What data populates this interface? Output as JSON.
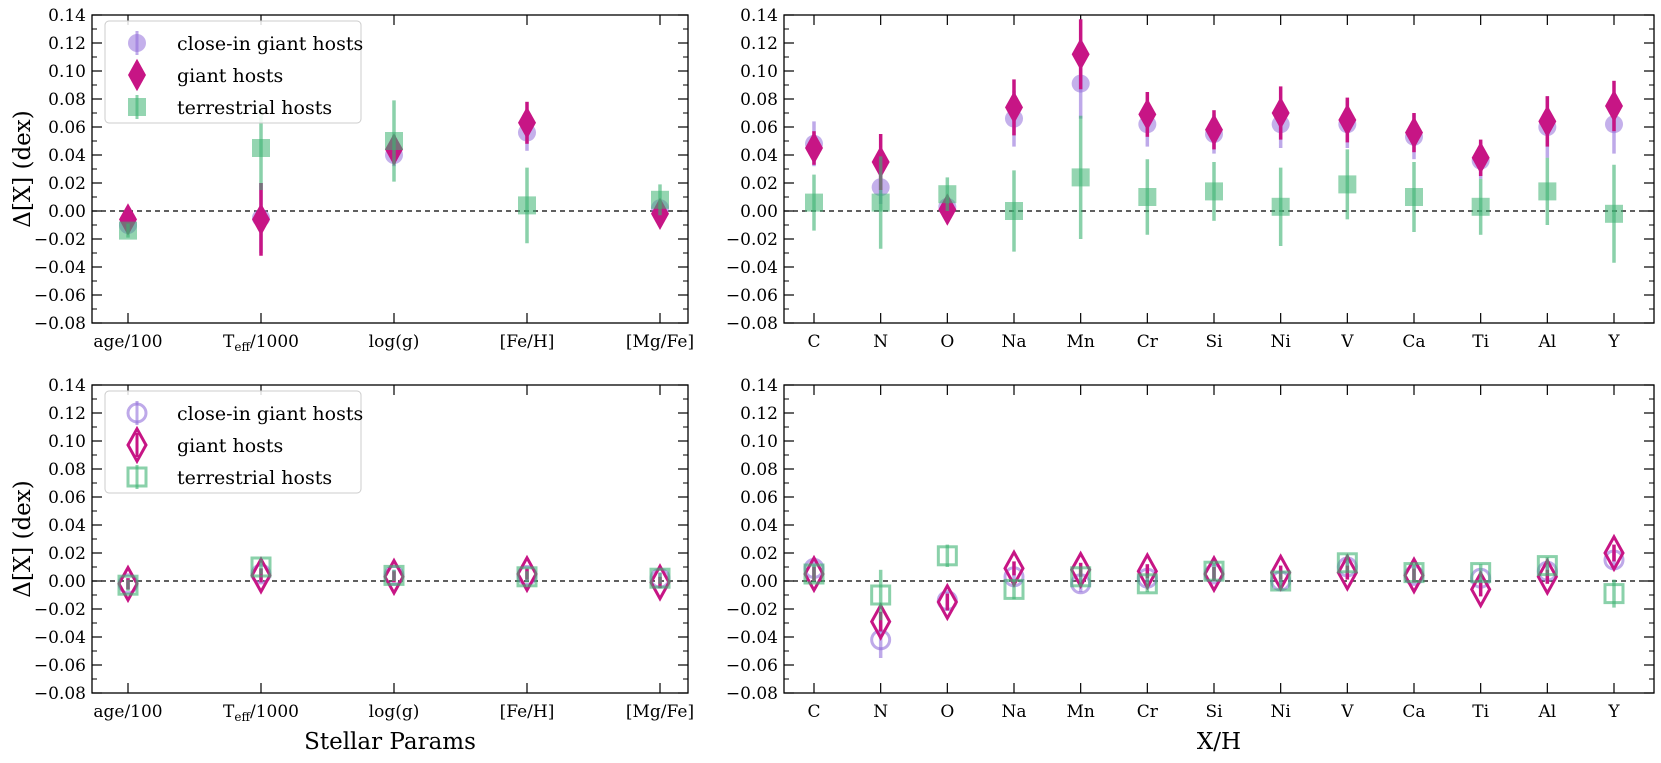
{
  "chart_data": [
    {
      "type": "scatter",
      "panel": "top-left",
      "categories": [
        "age/100",
        "T_eff/1000",
        "log(g)",
        "[Fe/H]",
        "[Mg/Fe]"
      ],
      "ylabel": "Δ[X] (dex)",
      "xlabel": "",
      "ylim": [
        -0.08,
        0.14
      ],
      "yticks": [
        "−0.08",
        "−0.06",
        "−0.04",
        "−0.02",
        "0.00",
        "0.02",
        "0.04",
        "0.06",
        "0.08",
        "0.10",
        "0.12",
        "0.14"
      ],
      "fill": "filled",
      "legend": "top-left",
      "series": [
        {
          "name": "close-in giant hosts",
          "color": "#9370db",
          "marker": "circle",
          "values": [
            -0.01,
            -0.005,
            0.04,
            0.056,
            0.002
          ],
          "errors": [
            0.004,
            0.025,
            0.008,
            0.013,
            0.004
          ]
        },
        {
          "name": "giant hosts",
          "color": "#c71585",
          "marker": "diamond",
          "values": [
            -0.006,
            -0.006,
            0.044,
            0.063,
            -0.002
          ],
          "errors": [
            0.004,
            0.026,
            0.01,
            0.015,
            0.004
          ]
        },
        {
          "name": "terrestrial hosts",
          "color": "#3cb371",
          "marker": "square",
          "values": [
            -0.014,
            0.045,
            0.05,
            0.004,
            0.008
          ],
          "errors": [
            0.005,
            0.03,
            0.029,
            0.027,
            0.011
          ]
        }
      ]
    },
    {
      "type": "scatter",
      "panel": "top-right",
      "categories": [
        "C",
        "N",
        "O",
        "Na",
        "Mn",
        "Cr",
        "Si",
        "Ni",
        "V",
        "Ca",
        "Ti",
        "Al",
        "Y"
      ],
      "xlabel": "",
      "ylim": [
        -0.08,
        0.14
      ],
      "yticks": [
        "−0.08",
        "−0.06",
        "−0.04",
        "−0.02",
        "0.00",
        "0.02",
        "0.04",
        "0.06",
        "0.08",
        "0.10",
        "0.12",
        "0.14"
      ],
      "fill": "filled",
      "series": [
        {
          "name": "close-in giant hosts",
          "color": "#9370db",
          "marker": "circle",
          "values": [
            0.048,
            0.017,
            0.003,
            0.066,
            0.091,
            0.062,
            0.055,
            0.062,
            0.062,
            0.053,
            0.036,
            0.06,
            0.062
          ],
          "errors": [
            0.016,
            0.012,
            0.008,
            0.02,
            0.025,
            0.016,
            0.014,
            0.017,
            0.017,
            0.016,
            0.013,
            0.022,
            0.021
          ]
        },
        {
          "name": "giant hosts",
          "color": "#c71585",
          "marker": "diamond",
          "values": [
            0.045,
            0.035,
            0.001,
            0.074,
            0.112,
            0.069,
            0.058,
            0.07,
            0.065,
            0.056,
            0.038,
            0.064,
            0.075
          ],
          "errors": [
            0.012,
            0.02,
            0.009,
            0.02,
            0.025,
            0.016,
            0.014,
            0.019,
            0.016,
            0.014,
            0.013,
            0.018,
            0.018
          ]
        },
        {
          "name": "terrestrial hosts",
          "color": "#3cb371",
          "marker": "square",
          "values": [
            0.006,
            0.006,
            0.012,
            0.0,
            0.024,
            0.01,
            0.014,
            0.003,
            0.019,
            0.01,
            0.003,
            0.014,
            -0.002
          ],
          "errors": [
            0.02,
            0.033,
            0.012,
            0.029,
            0.044,
            0.027,
            0.021,
            0.028,
            0.025,
            0.025,
            0.02,
            0.024,
            0.035
          ]
        }
      ]
    },
    {
      "type": "scatter",
      "panel": "bottom-left",
      "categories": [
        "age/100",
        "T_eff/1000",
        "log(g)",
        "[Fe/H]",
        "[Mg/Fe]"
      ],
      "ylabel": "Δ[X] (dex)",
      "xlabel": "Stellar Params",
      "ylim": [
        -0.08,
        0.14
      ],
      "yticks": [
        "−0.08",
        "−0.06",
        "−0.04",
        "−0.02",
        "0.00",
        "0.02",
        "0.04",
        "0.06",
        "0.08",
        "0.10",
        "0.12",
        "0.14"
      ],
      "fill": "open",
      "legend": "top-left",
      "series": [
        {
          "name": "close-in giant hosts",
          "color": "#9370db",
          "marker": "circle",
          "values": [
            -0.002,
            0.005,
            0.004,
            0.004,
            0.002
          ],
          "errors": [
            0.004,
            0.004,
            0.004,
            0.004,
            0.004
          ]
        },
        {
          "name": "giant hosts",
          "color": "#c71585",
          "marker": "diamond",
          "values": [
            -0.002,
            0.004,
            0.003,
            0.005,
            -0.001
          ],
          "errors": [
            0.004,
            0.005,
            0.004,
            0.004,
            0.004
          ]
        },
        {
          "name": "terrestrial hosts",
          "color": "#3cb371",
          "marker": "square",
          "values": [
            -0.003,
            0.01,
            0.004,
            0.003,
            0.002
          ],
          "errors": [
            0.004,
            0.005,
            0.004,
            0.004,
            0.004
          ]
        }
      ]
    },
    {
      "type": "scatter",
      "panel": "bottom-right",
      "categories": [
        "C",
        "N",
        "O",
        "Na",
        "Mn",
        "Cr",
        "Si",
        "Ni",
        "V",
        "Ca",
        "Ti",
        "Al",
        "Y"
      ],
      "xlabel": "X/H",
      "ylim": [
        -0.08,
        0.14
      ],
      "yticks": [
        "−0.08",
        "−0.06",
        "−0.04",
        "−0.02",
        "0.00",
        "0.02",
        "0.04",
        "0.06",
        "0.08",
        "0.10",
        "0.12",
        "0.14"
      ],
      "fill": "open",
      "series": [
        {
          "name": "close-in giant hosts",
          "color": "#9370db",
          "marker": "circle",
          "values": [
            0.009,
            -0.042,
            -0.014,
            0.003,
            -0.002,
            0.002,
            0.005,
            0.0,
            0.01,
            0.004,
            0.002,
            0.007,
            0.015
          ],
          "errors": [
            0.006,
            0.013,
            0.006,
            0.005,
            0.006,
            0.005,
            0.005,
            0.005,
            0.005,
            0.005,
            0.005,
            0.006,
            0.006
          ]
        },
        {
          "name": "giant hosts",
          "color": "#c71585",
          "marker": "diamond",
          "values": [
            0.005,
            -0.029,
            -0.015,
            0.009,
            0.008,
            0.007,
            0.005,
            0.006,
            0.006,
            0.004,
            -0.006,
            0.003,
            0.02
          ],
          "errors": [
            0.005,
            0.007,
            0.006,
            0.005,
            0.005,
            0.005,
            0.005,
            0.005,
            0.005,
            0.005,
            0.005,
            0.005,
            0.006
          ]
        },
        {
          "name": "terrestrial hosts",
          "color": "#3cb371",
          "marker": "square",
          "values": [
            0.005,
            -0.01,
            0.018,
            -0.006,
            0.003,
            -0.002,
            0.007,
            0.0,
            0.013,
            0.006,
            0.006,
            0.011,
            -0.009
          ],
          "errors": [
            0.006,
            0.018,
            0.008,
            0.007,
            0.006,
            0.006,
            0.006,
            0.006,
            0.006,
            0.006,
            0.006,
            0.006,
            0.01
          ]
        }
      ]
    }
  ]
}
